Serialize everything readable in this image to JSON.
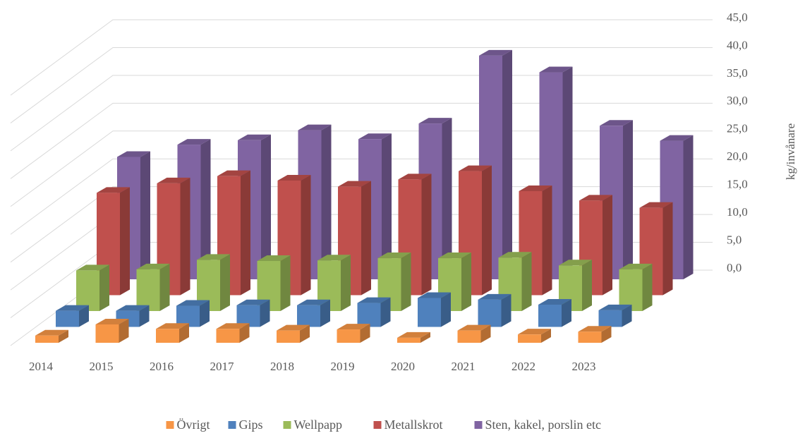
{
  "chart_data": {
    "type": "bar3d",
    "y_axis_label": "kg/invånare",
    "categories": [
      "2014",
      "2015",
      "2016",
      "2017",
      "2018",
      "2019",
      "2020",
      "2021",
      "2022",
      "2023"
    ],
    "series": [
      {
        "name": "Övrigt",
        "color": "#f79646",
        "values": [
          1.3,
          3.3,
          2.5,
          2.5,
          2.2,
          2.4,
          0.9,
          2.2,
          1.5,
          2.0
        ]
      },
      {
        "name": "Gips",
        "color": "#4f81bd",
        "values": [
          2.9,
          2.9,
          3.8,
          3.9,
          3.9,
          4.3,
          5.2,
          4.9,
          4.0,
          3.0
        ]
      },
      {
        "name": "Wellpapp",
        "color": "#9bbb59",
        "values": [
          7.3,
          7.5,
          9.2,
          9.0,
          9.1,
          9.5,
          9.5,
          9.6,
          8.2,
          7.5
        ]
      },
      {
        "name": "Metallskrot",
        "color": "#c0504d",
        "values": [
          18.4,
          20.1,
          21.4,
          20.6,
          19.5,
          20.8,
          22.3,
          18.7,
          17.0,
          15.7
        ]
      },
      {
        "name": "Sten, kakel, porslin etc",
        "color": "#8064a2",
        "values": [
          22.0,
          24.2,
          25.0,
          26.8,
          25.2,
          28.0,
          40.2,
          37.2,
          27.6,
          24.9
        ]
      }
    ],
    "ylim": [
      0,
      45
    ],
    "yticks": [
      {
        "value": 0,
        "label": "0,0"
      },
      {
        "value": 5,
        "label": "5,0"
      },
      {
        "value": 10,
        "label": "10,0"
      },
      {
        "value": 15,
        "label": "15,0"
      },
      {
        "value": 20,
        "label": "20,0"
      },
      {
        "value": 25,
        "label": "25,0"
      },
      {
        "value": 30,
        "label": "30,0"
      },
      {
        "value": 35,
        "label": "35,0"
      },
      {
        "value": 40,
        "label": "40,0"
      },
      {
        "value": 45,
        "label": "45,0"
      }
    ],
    "grid": true,
    "legend": "bottom"
  }
}
